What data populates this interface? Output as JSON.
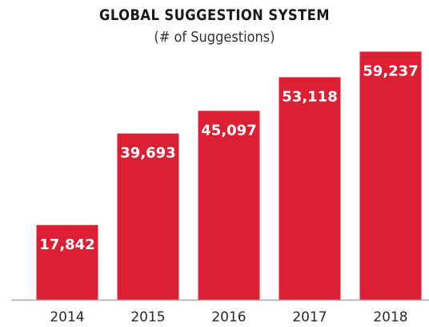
{
  "chart_data": {
    "type": "bar",
    "title": "GLOBAL SUGGESTION SYSTEM",
    "subtitle": "(# of Suggestions)",
    "categories": [
      "2014",
      "2015",
      "2016",
      "2017",
      "2018"
    ],
    "values": [
      17842,
      39693,
      45097,
      53118,
      59237
    ],
    "value_labels": [
      "17,842",
      "39,693",
      "45,097",
      "53,118",
      "59,237"
    ],
    "xlabel": "",
    "ylabel": "",
    "ylim": [
      0,
      62000
    ],
    "grid": false,
    "legend": "none",
    "bar_color": "#dc1f35",
    "axis_color": "#a9a9a9"
  }
}
